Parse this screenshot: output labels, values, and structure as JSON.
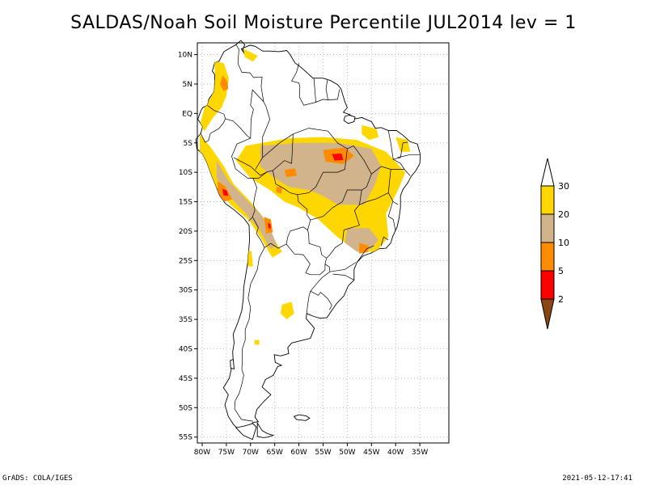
{
  "title": "SALDAS/Noah Soil Moisture Percentile JUL2014 lev = 1",
  "footer": {
    "left": "GrADS: COLA/IGES",
    "right": "2021-05-12-17:41"
  },
  "map": {
    "lon_range": [
      -81,
      -29
    ],
    "lat_range": [
      -56,
      12
    ],
    "lat_ticks": [
      {
        "value": 10,
        "label": "10N"
      },
      {
        "value": 5,
        "label": "5N"
      },
      {
        "value": 0,
        "label": "EQ"
      },
      {
        "value": -5,
        "label": "5S"
      },
      {
        "value": -10,
        "label": "10S"
      },
      {
        "value": -15,
        "label": "15S"
      },
      {
        "value": -20,
        "label": "20S"
      },
      {
        "value": -25,
        "label": "25S"
      },
      {
        "value": -30,
        "label": "30S"
      },
      {
        "value": -35,
        "label": "35S"
      },
      {
        "value": -40,
        "label": "40S"
      },
      {
        "value": -45,
        "label": "45S"
      },
      {
        "value": -50,
        "label": "50S"
      },
      {
        "value": -55,
        "label": "55S"
      }
    ],
    "lon_ticks": [
      {
        "value": -80,
        "label": "80W"
      },
      {
        "value": -75,
        "label": "75W"
      },
      {
        "value": -70,
        "label": "70W"
      },
      {
        "value": -65,
        "label": "65W"
      },
      {
        "value": -60,
        "label": "60W"
      },
      {
        "value": -55,
        "label": "55W"
      },
      {
        "value": -50,
        "label": "50W"
      },
      {
        "value": -45,
        "label": "45W"
      },
      {
        "value": -40,
        "label": "40W"
      },
      {
        "value": -35,
        "label": "35W"
      }
    ]
  },
  "colorbar": {
    "levels": [
      "2",
      "5",
      "10",
      "20",
      "30"
    ],
    "colors": [
      "#8b4513",
      "#ff0000",
      "#ff8c00",
      "#d2b48c",
      "#ffd700",
      "#ffffff"
    ]
  },
  "fill_colors": {
    "under2": "#8b4513",
    "p2_5": "#ff0000",
    "p5_10": "#ff8c00",
    "p10_20": "#d2b48c",
    "p20_30": "#ffd700"
  }
}
